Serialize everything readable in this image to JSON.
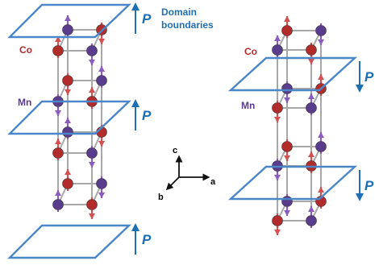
{
  "colors": {
    "plane": "#4a86c8",
    "p_label": "#1f6fb5",
    "co": "#b22c2c",
    "co_arrow": "#d45050",
    "mn": "#5a3c8c",
    "mn_arrow": "#8a5cc0",
    "bond": "#a8a8a8",
    "axis": "#111111"
  },
  "labels": {
    "domain_boundaries": [
      "Domain",
      "boundaries"
    ],
    "polarization": "P",
    "co_left": "Co",
    "mn_left": "Mn",
    "co_right": "Co",
    "mn_right": "Mn"
  },
  "axes": {
    "c": "c",
    "a": "a",
    "b": "b"
  }
}
